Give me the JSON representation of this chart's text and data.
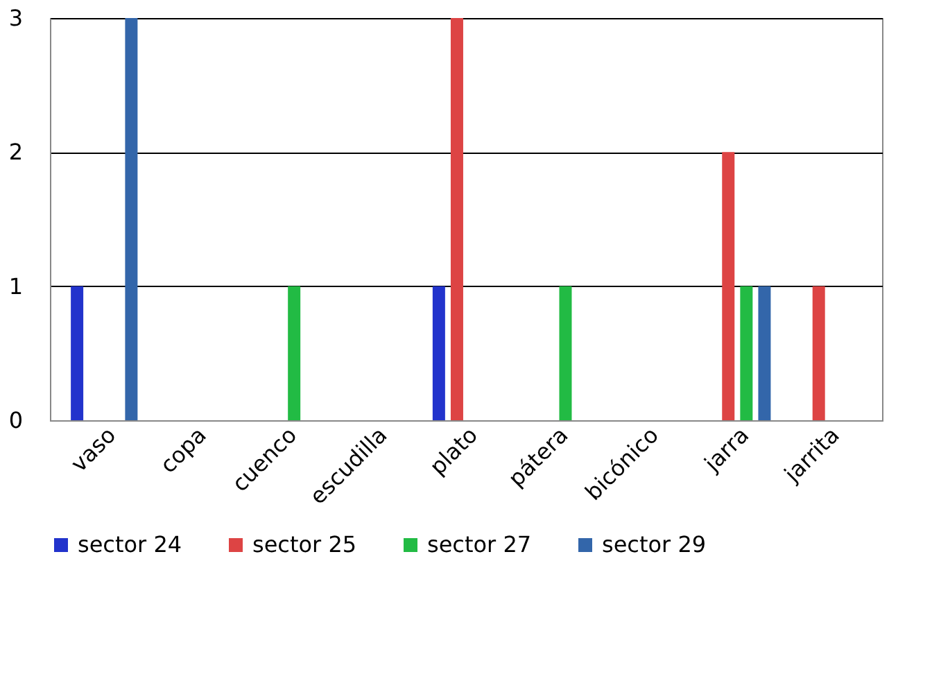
{
  "chart_data": {
    "type": "bar",
    "categories": [
      "vaso",
      "copa",
      "cuenco",
      "escudilla",
      "plato",
      "pátera",
      "bicónico",
      "jarra",
      "jarrita"
    ],
    "series": [
      {
        "name": "sector 24",
        "color": "#2233cc",
        "values": [
          1,
          null,
          null,
          null,
          1,
          null,
          null,
          null,
          null
        ]
      },
      {
        "name": "sector 25",
        "color": "#dd4444",
        "values": [
          null,
          null,
          null,
          null,
          3,
          null,
          null,
          2,
          1
        ]
      },
      {
        "name": "sector 27",
        "color": "#22bb44",
        "values": [
          null,
          null,
          1,
          null,
          null,
          1,
          null,
          1,
          null
        ]
      },
      {
        "name": "sector 29",
        "color": "#3366aa",
        "values": [
          3,
          null,
          null,
          null,
          null,
          null,
          null,
          1,
          null
        ]
      }
    ],
    "ylim": [
      0,
      3
    ],
    "yticks": [
      0,
      1,
      2,
      3
    ],
    "grid": "y",
    "legend": "bottom"
  }
}
